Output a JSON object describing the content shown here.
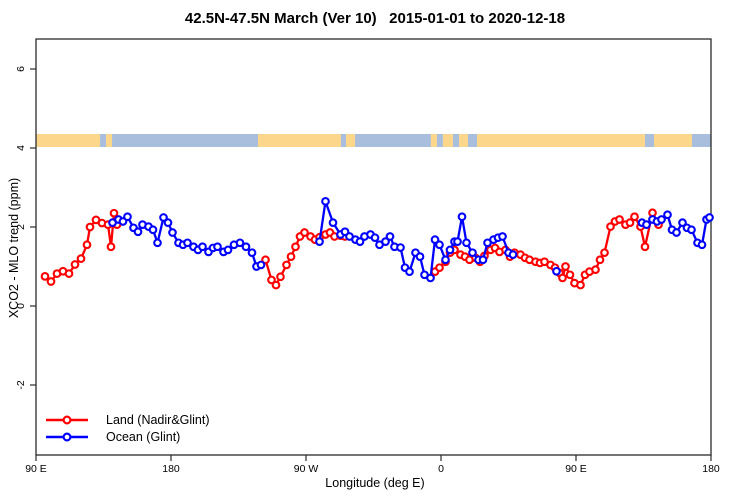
{
  "chart_data": {
    "type": "line",
    "title": "42.5N-47.5N March (Ver 10)   2015-01-01 to 2020-12-18",
    "xlabel": "Longitude (deg E)",
    "ylabel": "XCO2 - MLO trend (ppm)",
    "x_axis_note": "positions in continuous degrees eastward; axis runs 90E -> 180 -> 90W -> 0 -> 90E -> 180",
    "x_range": [
      90,
      540
    ],
    "ylim": [
      -3.77,
      6.76
    ],
    "y_ticks": [
      -2,
      0,
      2,
      4,
      6
    ],
    "x_ticks": [
      {
        "pos": 90,
        "label": "90 E"
      },
      {
        "pos": 180,
        "label": "180"
      },
      {
        "pos": 270,
        "label": "90 W"
      },
      {
        "pos": 360,
        "label": "0"
      },
      {
        "pos": 450,
        "label": "90 E"
      },
      {
        "pos": 540,
        "label": "180"
      }
    ],
    "grid": false,
    "legend_position": "bottom-left-inside",
    "map_strip": {
      "description": "land/ocean strip for latitude band drawn near y=4.2",
      "land_color": "#FBD68B",
      "ocean_color": "#A9BEDC",
      "segments": [
        {
          "from": 90,
          "to": 132.7,
          "type": "land"
        },
        {
          "from": 132.7,
          "to": 136.7,
          "type": "ocean"
        },
        {
          "from": 136.7,
          "to": 140.7,
          "type": "land"
        },
        {
          "from": 140.7,
          "to": 238,
          "type": "ocean"
        },
        {
          "from": 238,
          "to": 293.3,
          "type": "land"
        },
        {
          "from": 293.3,
          "to": 296.7,
          "type": "ocean"
        },
        {
          "from": 296.7,
          "to": 302.7,
          "type": "land"
        },
        {
          "from": 302.7,
          "to": 353.3,
          "type": "ocean"
        },
        {
          "from": 353.3,
          "to": 357.3,
          "type": "land"
        },
        {
          "from": 357.3,
          "to": 361.3,
          "type": "ocean"
        },
        {
          "from": 361.3,
          "to": 368,
          "type": "land"
        },
        {
          "from": 368,
          "to": 372,
          "type": "ocean"
        },
        {
          "from": 372,
          "to": 378,
          "type": "land"
        },
        {
          "from": 378,
          "to": 384,
          "type": "ocean"
        },
        {
          "from": 384,
          "to": 496,
          "type": "land"
        },
        {
          "from": 496,
          "to": 502,
          "type": "ocean"
        },
        {
          "from": 502,
          "to": 527.3,
          "type": "land"
        },
        {
          "from": 527.3,
          "to": 540,
          "type": "ocean"
        }
      ]
    },
    "series": [
      {
        "name": "Land (Nadir&Glint)",
        "color": "#FF0000",
        "marker": "open-circle",
        "segments": [
          [
            [
              96,
              0.75
            ],
            [
              100,
              0.62
            ],
            [
              104,
              0.82
            ],
            [
              108,
              0.88
            ],
            [
              112,
              0.82
            ],
            [
              116,
              1.05
            ],
            [
              120,
              1.2
            ],
            [
              124,
              1.55
            ],
            [
              126,
              2.0
            ],
            [
              130,
              2.18
            ],
            [
              134,
              2.1
            ],
            [
              138,
              2.06
            ],
            [
              140,
              1.5
            ],
            [
              142,
              2.35
            ],
            [
              144,
              2.06
            ]
          ],
          [
            [
              243,
              1.17
            ],
            [
              247,
              0.66
            ],
            [
              250,
              0.53
            ],
            [
              253,
              0.74
            ],
            [
              257,
              1.04
            ],
            [
              260,
              1.25
            ],
            [
              263,
              1.5
            ],
            [
              266,
              1.76
            ],
            [
              269,
              1.86
            ],
            [
              273,
              1.76
            ],
            [
              276,
              1.68
            ],
            [
              279,
              1.74
            ],
            [
              283,
              1.81
            ],
            [
              286,
              1.86
            ],
            [
              289,
              1.76
            ],
            [
              293,
              1.78
            ],
            [
              296,
              1.76
            ]
          ],
          [
            [
              356,
              0.87
            ],
            [
              359,
              0.97
            ],
            [
              363,
              1.12
            ],
            [
              366,
              1.35
            ],
            [
              369,
              1.42
            ],
            [
              373,
              1.3
            ],
            [
              376,
              1.25
            ],
            [
              379,
              1.17
            ],
            [
              383,
              1.22
            ],
            [
              386,
              1.12
            ],
            [
              389,
              1.27
            ],
            [
              393,
              1.42
            ],
            [
              396,
              1.47
            ],
            [
              399,
              1.37
            ],
            [
              403,
              1.42
            ],
            [
              406,
              1.25
            ],
            [
              409,
              1.35
            ],
            [
              413,
              1.3
            ],
            [
              416,
              1.22
            ],
            [
              419,
              1.17
            ],
            [
              423,
              1.12
            ],
            [
              426,
              1.09
            ],
            [
              429,
              1.12
            ],
            [
              433,
              1.04
            ],
            [
              436,
              0.97
            ],
            [
              439,
              0.84
            ],
            [
              441,
              0.71
            ],
            [
              443,
              1.0
            ],
            [
              446,
              0.79
            ],
            [
              449,
              0.58
            ],
            [
              453,
              0.53
            ],
            [
              456,
              0.79
            ],
            [
              459,
              0.87
            ],
            [
              463,
              0.92
            ],
            [
              466,
              1.17
            ],
            [
              469,
              1.35
            ],
            [
              473,
              2.01
            ],
            [
              476,
              2.14
            ],
            [
              479,
              2.19
            ],
            [
              483,
              2.06
            ],
            [
              486,
              2.11
            ],
            [
              489,
              2.26
            ],
            [
              493,
              2.01
            ],
            [
              496,
              1.5
            ],
            [
              501,
              2.36
            ],
            [
              505,
              2.06
            ]
          ]
        ]
      },
      {
        "name": "Ocean (Glint)",
        "color": "#0000FF",
        "marker": "open-circle",
        "segments": [
          [
            [
              141,
              2.11
            ],
            [
              145,
              2.19
            ],
            [
              148,
              2.14
            ],
            [
              151,
              2.26
            ],
            [
              155,
              1.98
            ],
            [
              158,
              1.88
            ],
            [
              161,
              2.06
            ],
            [
              165,
              2.01
            ],
            [
              168,
              1.93
            ],
            [
              171,
              1.6
            ],
            [
              175,
              2.24
            ],
            [
              178,
              2.11
            ],
            [
              181,
              1.86
            ],
            [
              185,
              1.6
            ],
            [
              188,
              1.55
            ],
            [
              191,
              1.6
            ],
            [
              195,
              1.5
            ],
            [
              198,
              1.42
            ],
            [
              201,
              1.5
            ],
            [
              205,
              1.37
            ],
            [
              208,
              1.47
            ],
            [
              211,
              1.5
            ],
            [
              215,
              1.37
            ],
            [
              218,
              1.42
            ],
            [
              222,
              1.55
            ],
            [
              226,
              1.6
            ],
            [
              230,
              1.5
            ],
            [
              234,
              1.35
            ],
            [
              237,
              1.0
            ],
            [
              240,
              1.04
            ]
          ],
          [
            [
              279,
              1.63
            ],
            [
              283,
              2.65
            ],
            [
              288,
              2.11
            ],
            [
              293,
              1.81
            ],
            [
              296,
              1.88
            ],
            [
              299,
              1.76
            ],
            [
              303,
              1.68
            ],
            [
              306,
              1.63
            ],
            [
              309,
              1.76
            ],
            [
              313,
              1.81
            ],
            [
              316,
              1.73
            ],
            [
              319,
              1.55
            ],
            [
              323,
              1.63
            ],
            [
              326,
              1.76
            ],
            [
              329,
              1.5
            ],
            [
              333,
              1.48
            ],
            [
              336,
              0.97
            ],
            [
              339,
              0.87
            ],
            [
              343,
              1.35
            ],
            [
              346,
              1.25
            ],
            [
              349,
              0.79
            ],
            [
              353,
              0.71
            ],
            [
              356,
              1.68
            ],
            [
              359,
              1.55
            ],
            [
              363,
              1.17
            ],
            [
              366,
              1.42
            ],
            [
              369,
              1.63
            ],
            [
              371,
              1.63
            ],
            [
              374,
              2.26
            ],
            [
              377,
              1.6
            ],
            [
              381,
              1.35
            ],
            [
              385,
              1.17
            ],
            [
              388,
              1.17
            ],
            [
              391,
              1.6
            ],
            [
              395,
              1.68
            ],
            [
              398,
              1.73
            ],
            [
              401,
              1.76
            ],
            [
              405,
              1.35
            ],
            [
              408,
              1.3
            ]
          ],
          [
            [
              437,
              0.88
            ]
          ],
          [
            [
              494,
              2.11
            ],
            [
              497,
              2.06
            ],
            [
              501,
              2.19
            ],
            [
              504,
              2.14
            ],
            [
              507,
              2.19
            ],
            [
              511,
              2.31
            ],
            [
              514,
              1.93
            ],
            [
              517,
              1.86
            ],
            [
              521,
              2.11
            ],
            [
              524,
              1.98
            ],
            [
              527,
              1.93
            ],
            [
              531,
              1.6
            ],
            [
              534,
              1.55
            ],
            [
              537,
              2.19
            ],
            [
              539,
              2.24
            ]
          ]
        ]
      }
    ]
  },
  "legend": {
    "items": [
      {
        "label": "Land (Nadir&Glint)",
        "color": "#FF0000"
      },
      {
        "label": "Ocean (Glint)",
        "color": "#0000FF"
      }
    ]
  }
}
